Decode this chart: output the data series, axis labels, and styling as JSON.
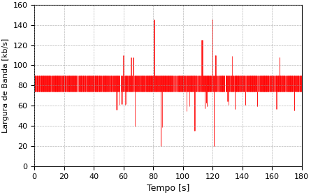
{
  "xlabel": "Tempo [s]",
  "ylabel": "Largura de Banda [kb/s]",
  "xlim": [
    0,
    180
  ],
  "ylim": [
    0,
    160
  ],
  "xticks": [
    0,
    20,
    40,
    60,
    80,
    100,
    120,
    140,
    160,
    180
  ],
  "yticks": [
    0,
    20,
    40,
    60,
    80,
    100,
    120,
    140,
    160
  ],
  "line_color": "#ff0000",
  "bg_color": "#ffffff",
  "grid_color": "#999999",
  "val_low": 74,
  "val_high": 90,
  "seed": 7,
  "n_points": 900
}
